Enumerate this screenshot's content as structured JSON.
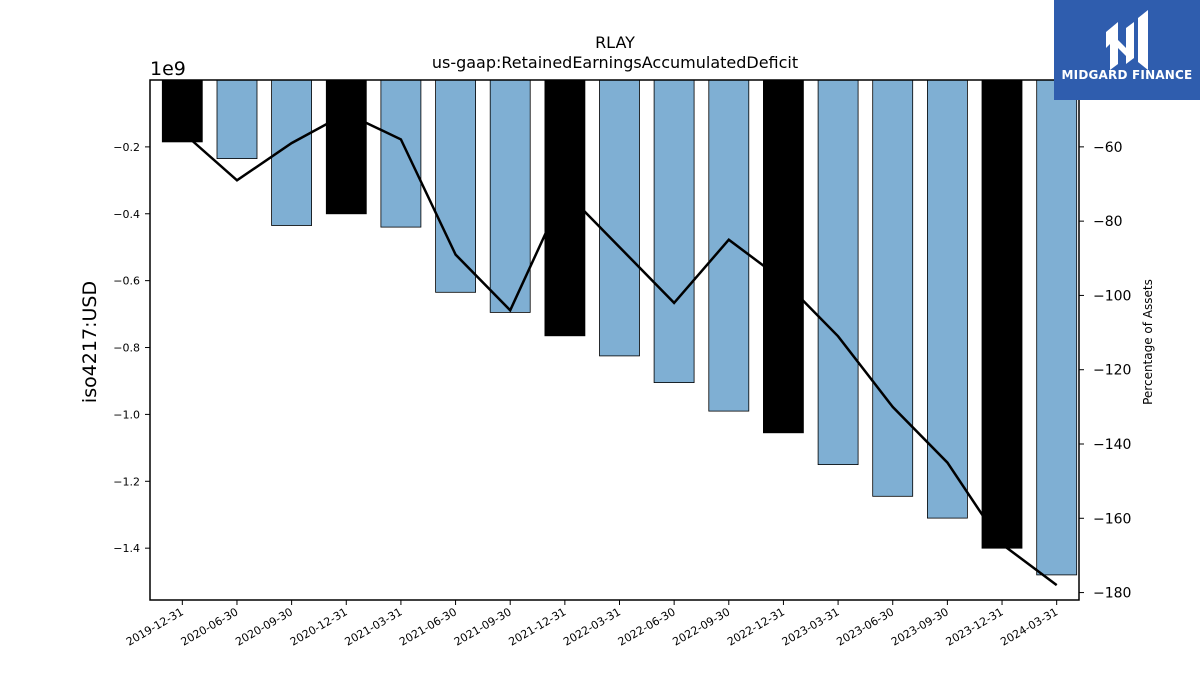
{
  "chart_data": {
    "type": "bar",
    "title": "RLAY",
    "subtitle": "us-gaap:RetainedEarningsAccumulatedDeficit",
    "ylabel": "iso4217:USD",
    "y_exponent_label": "1e9",
    "y2label": "Percentage of Assets",
    "ylim": [
      -1.555,
      0.0
    ],
    "y2lim": [
      -182,
      -42
    ],
    "y_ticks": [
      -0.2,
      -0.4,
      -0.6,
      -0.8,
      -1.0,
      -1.2,
      -1.4
    ],
    "y_tick_labels": [
      "−0.2",
      "−0.4",
      "−0.6",
      "−0.8",
      "−1.0",
      "−1.2",
      "−1.4"
    ],
    "y2_ticks": [
      -60,
      -80,
      -100,
      -120,
      -140,
      -160,
      -180
    ],
    "y2_tick_labels": [
      "−60",
      "−80",
      "−100",
      "−120",
      "−140",
      "−160",
      "−180"
    ],
    "categories": [
      "2019-12-31",
      "2020-06-30",
      "2020-09-30",
      "2020-12-31",
      "2021-03-31",
      "2021-06-30",
      "2021-09-30",
      "2021-12-31",
      "2022-03-31",
      "2022-06-30",
      "2022-09-30",
      "2022-12-31",
      "2023-03-31",
      "2023-06-30",
      "2023-09-30",
      "2023-12-31",
      "2024-03-31"
    ],
    "series": [
      {
        "values": [
          -0.185,
          -0.235,
          -0.435,
          -0.4,
          -0.44,
          -0.635,
          -0.695,
          -0.765,
          -0.825,
          -0.905,
          -0.99,
          -1.055,
          -1.15,
          -1.245,
          -1.31,
          -1.4,
          -1.48
        ],
        "bar_colors": [
          "#000000",
          "#7fafd3",
          "#7fafd3",
          "#000000",
          "#7fafd3",
          "#7fafd3",
          "#7fafd3",
          "#000000",
          "#7fafd3",
          "#7fafd3",
          "#7fafd3",
          "#000000",
          "#7fafd3",
          "#7fafd3",
          "#7fafd3",
          "#000000",
          "#7fafd3"
        ]
      },
      {
        "axis": "right",
        "type": "line",
        "color": "#000000",
        "values": [
          -56,
          -69,
          -59,
          -51,
          -58,
          -89,
          -104,
          -72,
          -87,
          -102,
          -85,
          -96,
          -111,
          -130,
          -145,
          -167,
          -178
        ]
      }
    ],
    "grid": false
  },
  "logo": {
    "text": "MIDGARD FINANCE",
    "bg_color": "#2f5dae"
  }
}
